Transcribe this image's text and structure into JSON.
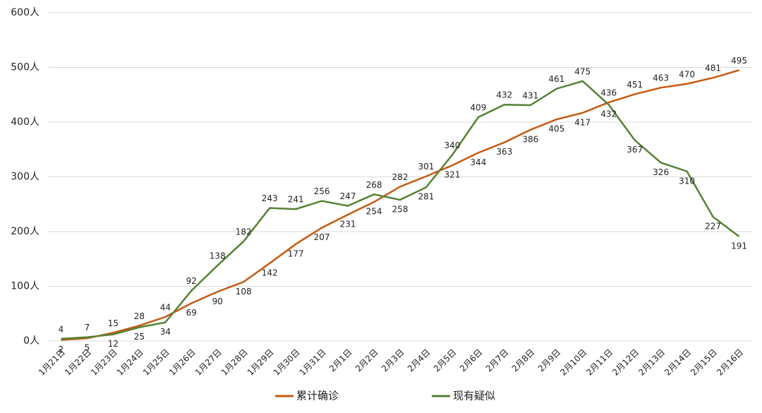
{
  "chart_data": {
    "type": "line",
    "categories": [
      "1月21日",
      "1月22日",
      "1月23日",
      "1月24日",
      "1月25日",
      "1月26日",
      "1月27日",
      "1月28日",
      "1月29日",
      "1月30日",
      "1月31日",
      "2月1日",
      "2月2日",
      "2月3日",
      "2月4日",
      "2月5日",
      "2月6日",
      "2月7日",
      "2月8日",
      "2月9日",
      "2月10日",
      "2月11日",
      "2月12日",
      "2月13日",
      "2月14日",
      "2月15日",
      "2月16日"
    ],
    "series": [
      {
        "name": "累计确诊",
        "color": "#c55a11",
        "values": [
          2,
          5,
          15,
          28,
          44,
          69,
          90,
          108,
          142,
          177,
          207,
          231,
          254,
          282,
          301,
          321,
          344,
          363,
          386,
          405,
          417,
          436,
          451,
          463,
          470,
          481,
          495
        ]
      },
      {
        "name": "现有疑似",
        "color": "#548235",
        "values": [
          4,
          7,
          12,
          25,
          34,
          92,
          138,
          182,
          243,
          241,
          256,
          247,
          268,
          258,
          281,
          340,
          409,
          432,
          431,
          461,
          475,
          432,
          367,
          326,
          310,
          227,
          191
        ]
      }
    ],
    "ylim": [
      0,
      600
    ],
    "yticks": [
      {
        "value": 0,
        "label": "0人"
      },
      {
        "value": 100,
        "label": "100人"
      },
      {
        "value": 200,
        "label": "200人"
      },
      {
        "value": 300,
        "label": "300人"
      },
      {
        "value": 400,
        "label": "400人"
      },
      {
        "value": 500,
        "label": "500人"
      },
      {
        "value": 600,
        "label": "600人"
      }
    ],
    "grid": true,
    "legend": "bottom"
  }
}
